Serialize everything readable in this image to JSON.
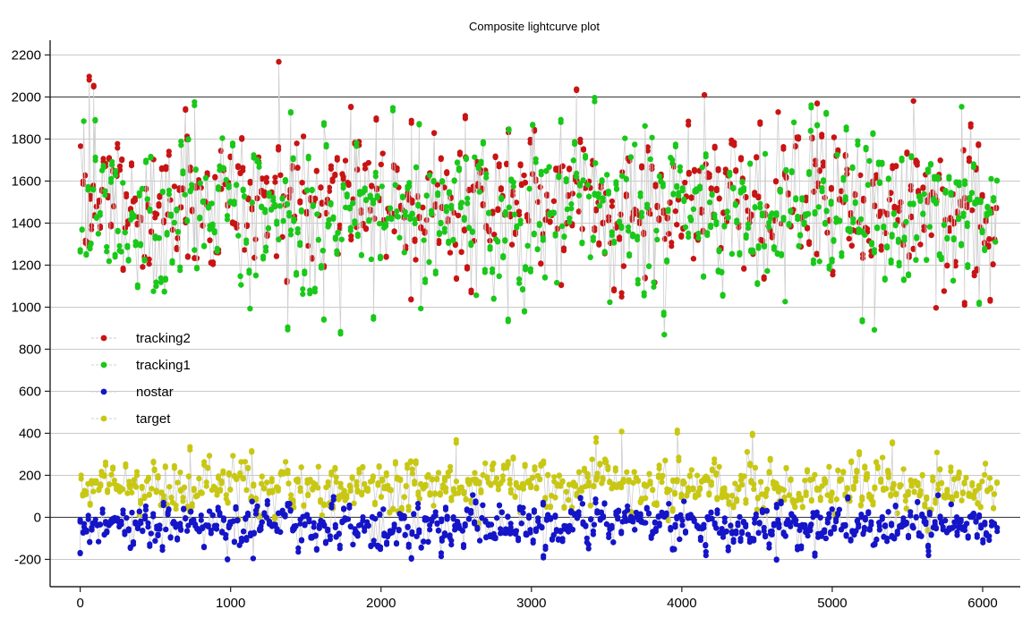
{
  "chart_data": {
    "type": "scatter",
    "title": "Composite lightcurve plot",
    "xlim": [
      -200,
      6250
    ],
    "ylim": [
      -330,
      2270
    ],
    "xticks": [
      0,
      1000,
      2000,
      3000,
      4000,
      5000,
      6000
    ],
    "yticks": [
      -200,
      0,
      200,
      400,
      600,
      800,
      1000,
      1200,
      1400,
      1600,
      1800,
      2000,
      2200
    ],
    "grid": true,
    "legend_position": "left, middle",
    "x_range": [
      0,
      6100
    ],
    "series": [
      {
        "name": "tracking2",
        "color": "#c81414",
        "center": 1480,
        "spread": 200,
        "x": [
          60,
          90,
          700,
          1320,
          1800,
          2200,
          2560,
          3300,
          3600,
          4150,
          4520,
          4900,
          5540,
          5690,
          5880,
          6050
        ],
        "y": [
          2090,
          2060,
          1950,
          2160,
          1960,
          1030,
          1900,
          2030,
          1060,
          2020,
          1870,
          1980,
          1990,
          1000,
          1020,
          1030
        ]
      },
      {
        "name": "tracking1",
        "color": "#19c819",
        "center": 1440,
        "spread": 220,
        "x": [
          100,
          760,
          1380,
          1400,
          1620,
          1950,
          2850,
          3420,
          3880,
          4860,
          4960,
          5200,
          5280,
          5860
        ],
        "y": [
          1890,
          1970,
          900,
          1930,
          940,
          950,
          1850,
          1990,
          970,
          1960,
          1930,
          930,
          900,
          1960
        ]
      },
      {
        "name": "nostar",
        "color": "#1414c8",
        "center": -40,
        "spread": 60,
        "x": [
          0,
          1150,
          2400,
          3080,
          4160,
          4630,
          5640
        ],
        "y": [
          -170,
          -200,
          -180,
          -190,
          -170,
          -210,
          -170
        ]
      },
      {
        "name": "target",
        "color": "#c8c814",
        "center": 150,
        "spread": 75,
        "x": [
          730,
          1140,
          2500,
          3430,
          3600,
          3970,
          4470,
          5400
        ],
        "y": [
          330,
          320,
          360,
          370,
          410,
          410,
          400,
          360
        ]
      }
    ]
  }
}
